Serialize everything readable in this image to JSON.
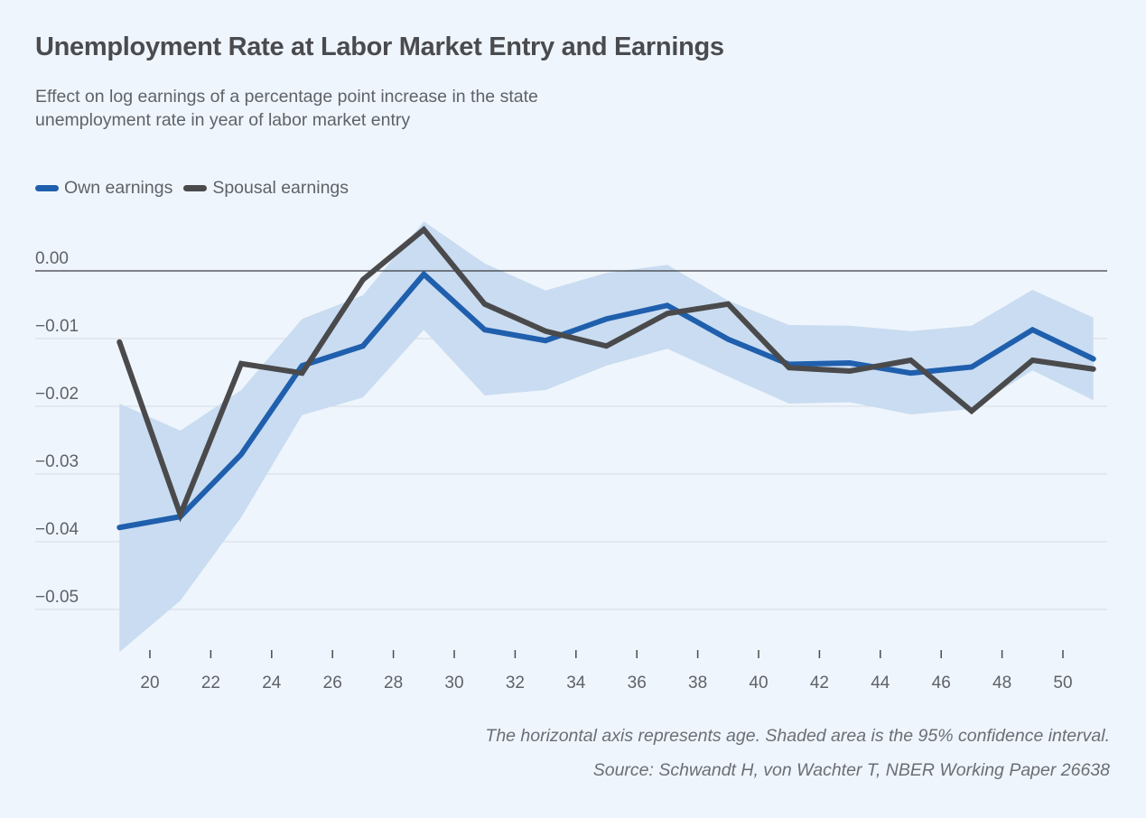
{
  "colors": {
    "background": "#eff5fc",
    "own": "#1f5fad",
    "spousal": "#4a4a4c",
    "ci_band": "#c9dcf1",
    "gridline": "#d3dae3",
    "zero_line": "#3a3b3f"
  },
  "chart_data": {
    "type": "line",
    "title": "Unemployment Rate at Labor Market Entry and Earnings",
    "subtitle": "Effect on log earnings of a percentage point increase in the state unemployment rate in year of labor market entry",
    "xlabel": "",
    "ylabel": "",
    "x": [
      19,
      21,
      23,
      25,
      27,
      29,
      31,
      33,
      35,
      37,
      39,
      41,
      43,
      45,
      47,
      49,
      51
    ],
    "series": [
      {
        "name": "Own earnings",
        "key": "own",
        "values": [
          -0.0379,
          -0.0363,
          -0.0271,
          -0.014,
          -0.0111,
          -0.0005,
          -0.0087,
          -0.0103,
          -0.0071,
          -0.0051,
          -0.0101,
          -0.0138,
          -0.0136,
          -0.0151,
          -0.0142,
          -0.0087,
          -0.013
        ]
      },
      {
        "name": "Spousal earnings",
        "key": "spousal",
        "values": [
          -0.0105,
          -0.036,
          -0.0137,
          -0.0151,
          -0.0013,
          0.0061,
          -0.0049,
          -0.0089,
          -0.0111,
          -0.0063,
          -0.0049,
          -0.0143,
          -0.0148,
          -0.0132,
          -0.0207,
          -0.0132,
          -0.0145
        ]
      }
    ],
    "confidence_interval": {
      "label": "95% confidence interval (Own earnings)",
      "upper": [
        -0.0196,
        -0.0236,
        -0.0176,
        -0.0071,
        -0.0036,
        0.0073,
        0.0011,
        -0.0029,
        -0.0003,
        0.0009,
        -0.0044,
        -0.008,
        -0.0081,
        -0.0089,
        -0.0081,
        -0.0028,
        -0.0069
      ],
      "lower": [
        -0.0563,
        -0.0487,
        -0.0364,
        -0.0213,
        -0.0187,
        -0.0087,
        -0.0184,
        -0.0176,
        -0.014,
        -0.0115,
        -0.0156,
        -0.0196,
        -0.0194,
        -0.0212,
        -0.0204,
        -0.0147,
        -0.0191
      ]
    },
    "xlim": [
      19,
      51
    ],
    "ylim": [
      -0.055,
      0.008
    ],
    "xticks": [
      20,
      22,
      24,
      26,
      28,
      30,
      32,
      34,
      36,
      38,
      40,
      42,
      44,
      46,
      48,
      50
    ],
    "yticks": [
      {
        "value": 0.0,
        "label": "0.00"
      },
      {
        "value": -0.01,
        "label": "−0.01"
      },
      {
        "value": -0.02,
        "label": "−0.02"
      },
      {
        "value": -0.03,
        "label": "−0.03"
      },
      {
        "value": -0.04,
        "label": "−0.04"
      },
      {
        "value": -0.05,
        "label": "−0.05"
      }
    ],
    "grid": true,
    "legend": [
      {
        "label": "Own earnings",
        "key": "own"
      },
      {
        "label": "Spousal earnings",
        "key": "spousal"
      }
    ],
    "legend_position": "top-left",
    "notes": [
      "The horizontal axis represents age. Shaded area is the 95% confidence interval.",
      "Source: Schwandt H, von Wachter T, NBER Working Paper 26638"
    ]
  }
}
